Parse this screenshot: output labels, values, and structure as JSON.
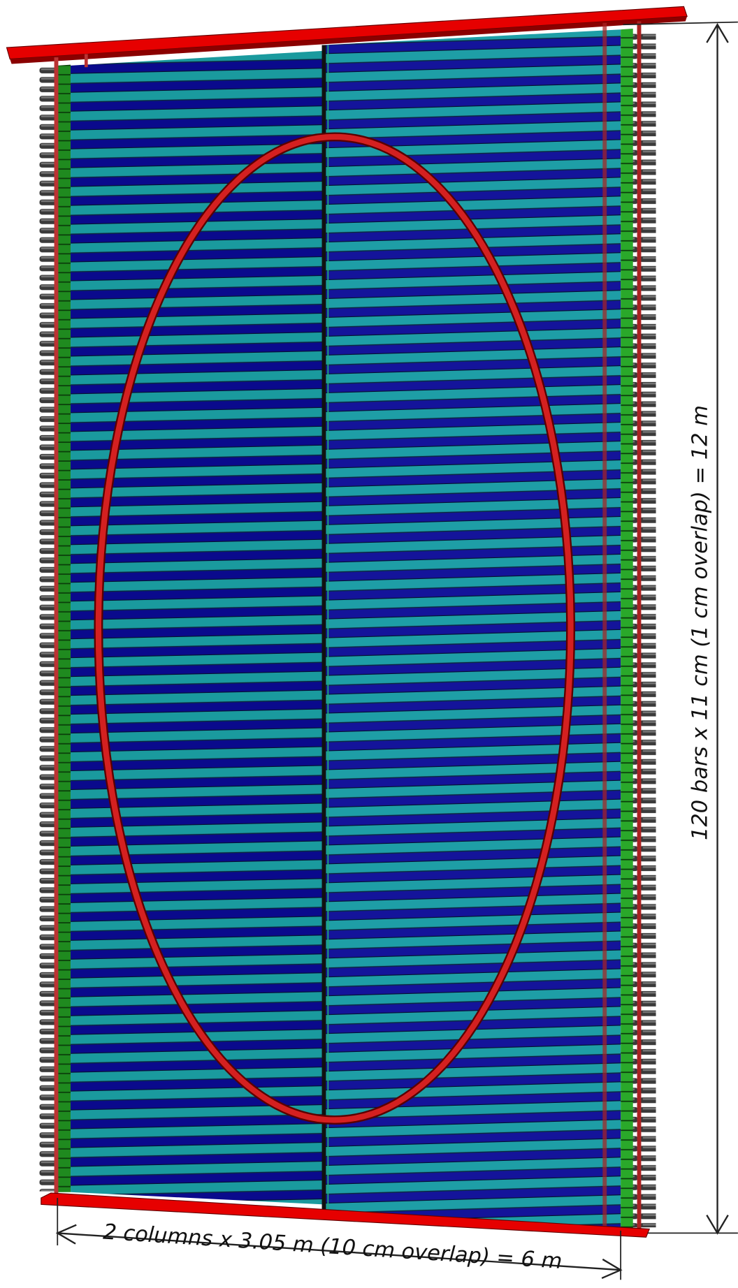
{
  "dimensions": {
    "height_label": "120 bars x 11 cm (1 cm overlap) = 12 m",
    "width_label": "2 columns x 3.05 m (10 cm overlap) = 6 m"
  }
}
